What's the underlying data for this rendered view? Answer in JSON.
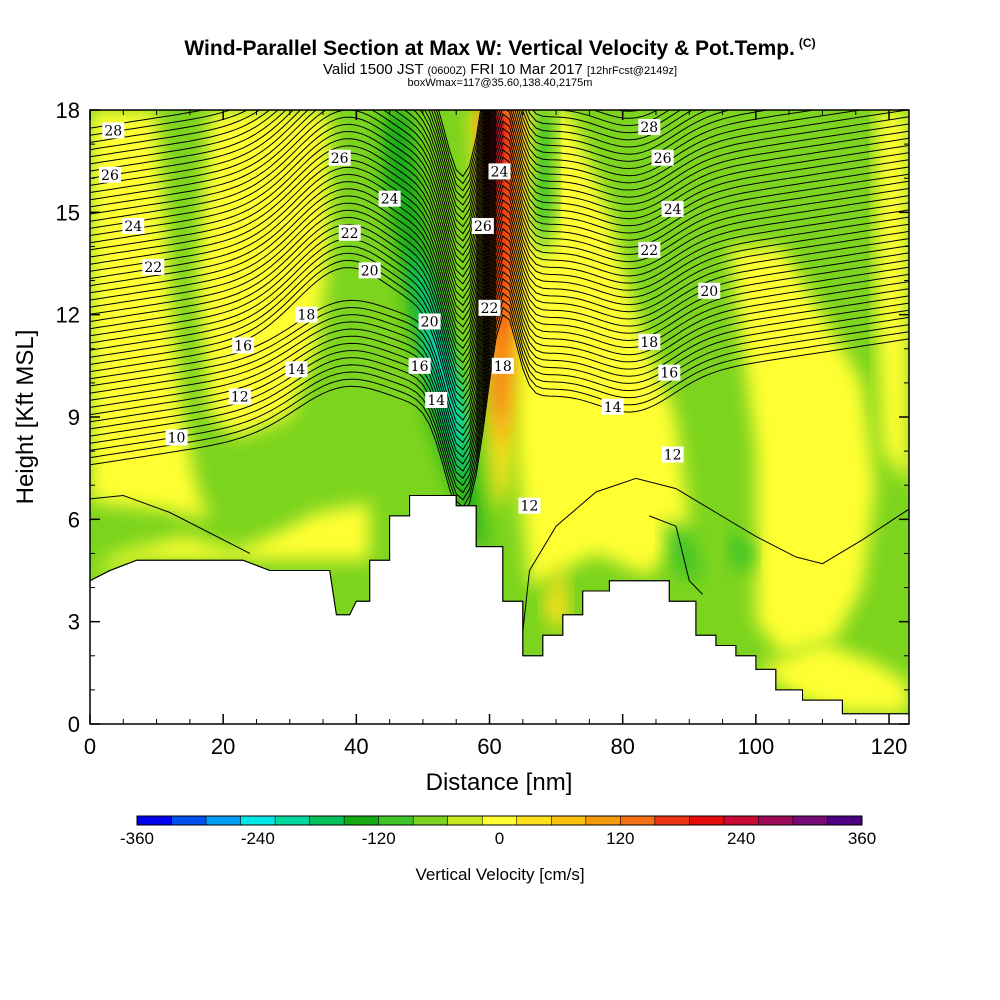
{
  "header": {
    "title": "Wind-Parallel Section at Max W: Vertical Velocity & Pot.Temp.",
    "copyright": "(C)",
    "valid_prefix": "Valid 1500 JST",
    "utc": "(0600Z)",
    "valid_date": "FRI 10 Mar 2017",
    "forecast": "[12hrFcst@2149z]",
    "box_info": "boxWmax=117@35.60,138.40,2175m"
  },
  "chart_data": {
    "type": "heatmap",
    "xlabel": "Distance [nm]",
    "ylabel": "Height [Kft MSL]",
    "xlim": [
      0,
      123
    ],
    "ylim": [
      0,
      18
    ],
    "x_ticks": [
      0,
      20,
      40,
      60,
      80,
      100,
      120
    ],
    "y_ticks": [
      0,
      3,
      6,
      9,
      12,
      15,
      18
    ],
    "colorbar": {
      "title": "Vertical Velocity [cm/s]",
      "levels": [
        -360,
        -330,
        -300,
        -270,
        -240,
        -210,
        -180,
        -150,
        -120,
        -90,
        -60,
        -30,
        0,
        30,
        60,
        90,
        120,
        150,
        180,
        210,
        240,
        270,
        300,
        330,
        360
      ],
      "colors": [
        "#0000ee",
        "#0050f0",
        "#009ef2",
        "#00e8e8",
        "#00d8a0",
        "#00c05a",
        "#14aa14",
        "#3ec428",
        "#7cd41e",
        "#c6e81e",
        "#ffff32",
        "#fde21a",
        "#fcc00a",
        "#f59a0a",
        "#f57014",
        "#ee3414",
        "#e60a0a",
        "#c80a32",
        "#a00a5a",
        "#780a78",
        "#4b0082"
      ],
      "tick_labels": [
        "-360",
        "-240",
        "-120",
        "0",
        "120",
        "240",
        "360"
      ]
    },
    "terrain_kft": [
      [
        0,
        4.2
      ],
      [
        3,
        4.5
      ],
      [
        7,
        4.8
      ],
      [
        23,
        4.8
      ],
      [
        27,
        4.5
      ],
      [
        36,
        4.5
      ],
      [
        37,
        3.2
      ],
      [
        39,
        3.2
      ],
      [
        40,
        3.6
      ],
      [
        42,
        3.6
      ],
      [
        42,
        4.8
      ],
      [
        45,
        4.8
      ],
      [
        45,
        6.1
      ],
      [
        48,
        6.1
      ],
      [
        48,
        6.7
      ],
      [
        55,
        6.7
      ],
      [
        55,
        6.4
      ],
      [
        58,
        6.4
      ],
      [
        58,
        5.2
      ],
      [
        62,
        5.2
      ],
      [
        62,
        3.6
      ],
      [
        65,
        3.6
      ],
      [
        65,
        2.0
      ],
      [
        68,
        2.0
      ],
      [
        68,
        2.6
      ],
      [
        71,
        2.6
      ],
      [
        71,
        3.2
      ],
      [
        74,
        3.2
      ],
      [
        74,
        3.9
      ],
      [
        78,
        3.9
      ],
      [
        78,
        4.2
      ],
      [
        87,
        4.2
      ],
      [
        87,
        3.6
      ],
      [
        91,
        3.6
      ],
      [
        91,
        2.6
      ],
      [
        94,
        2.6
      ],
      [
        94,
        2.3
      ],
      [
        97,
        2.3
      ],
      [
        97,
        2.0
      ],
      [
        100,
        2.0
      ],
      [
        100,
        1.6
      ],
      [
        103,
        1.6
      ],
      [
        103,
        1.0
      ],
      [
        107,
        1.0
      ],
      [
        107,
        0.7
      ],
      [
        113,
        0.7
      ],
      [
        113,
        0.3
      ],
      [
        123,
        0.3
      ]
    ],
    "theta_contours": {
      "levels": [
        10,
        12,
        14,
        16,
        18,
        20,
        22,
        24,
        26,
        28
      ],
      "labels": [
        {
          "text": "28",
          "x": 3.5,
          "y": 17.4
        },
        {
          "text": "26",
          "x": 3,
          "y": 16.1
        },
        {
          "text": "24",
          "x": 6.5,
          "y": 14.6
        },
        {
          "text": "22",
          "x": 9.5,
          "y": 13.4
        },
        {
          "text": "26",
          "x": 37.5,
          "y": 16.6
        },
        {
          "text": "24",
          "x": 45,
          "y": 15.4
        },
        {
          "text": "22",
          "x": 39,
          "y": 14.4
        },
        {
          "text": "20",
          "x": 42,
          "y": 13.3
        },
        {
          "text": "18",
          "x": 32.5,
          "y": 12.0
        },
        {
          "text": "16",
          "x": 23,
          "y": 11.1
        },
        {
          "text": "14",
          "x": 31,
          "y": 10.4
        },
        {
          "text": "12",
          "x": 22.5,
          "y": 9.6
        },
        {
          "text": "10",
          "x": 13,
          "y": 8.4
        },
        {
          "text": "20",
          "x": 51,
          "y": 11.8
        },
        {
          "text": "16",
          "x": 49.5,
          "y": 10.5
        },
        {
          "text": "14",
          "x": 52,
          "y": 9.5
        },
        {
          "text": "24",
          "x": 61.5,
          "y": 16.2
        },
        {
          "text": "26",
          "x": 59,
          "y": 14.6
        },
        {
          "text": "22",
          "x": 60,
          "y": 12.2
        },
        {
          "text": "18",
          "x": 62,
          "y": 10.5
        },
        {
          "text": "12",
          "x": 66,
          "y": 6.4
        },
        {
          "text": "28",
          "x": 84,
          "y": 17.5
        },
        {
          "text": "26",
          "x": 86,
          "y": 16.6
        },
        {
          "text": "24",
          "x": 87.5,
          "y": 15.1
        },
        {
          "text": "22",
          "x": 84,
          "y": 13.9
        },
        {
          "text": "20",
          "x": 93,
          "y": 12.7
        },
        {
          "text": "18",
          "x": 84,
          "y": 11.2
        },
        {
          "text": "16",
          "x": 87,
          "y": 10.3
        },
        {
          "text": "14",
          "x": 78.5,
          "y": 9.3
        },
        {
          "text": "12",
          "x": 87.5,
          "y": 7.9
        }
      ]
    }
  }
}
